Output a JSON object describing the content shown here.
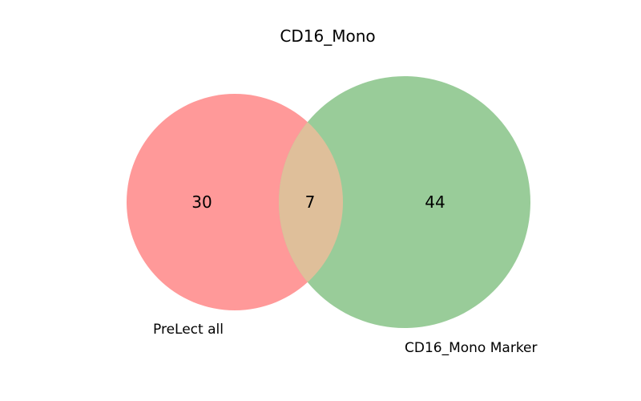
{
  "title": "CD16_Mono",
  "sets": [
    {
      "name": "PreLect all",
      "color": "#ff9999"
    },
    {
      "name": "CD16_Mono Marker",
      "color": "#99cc99"
    }
  ],
  "overlap_color": "#dfbf9a",
  "counts": {
    "left_only": "30",
    "intersection": "7",
    "right_only": "44"
  }
}
